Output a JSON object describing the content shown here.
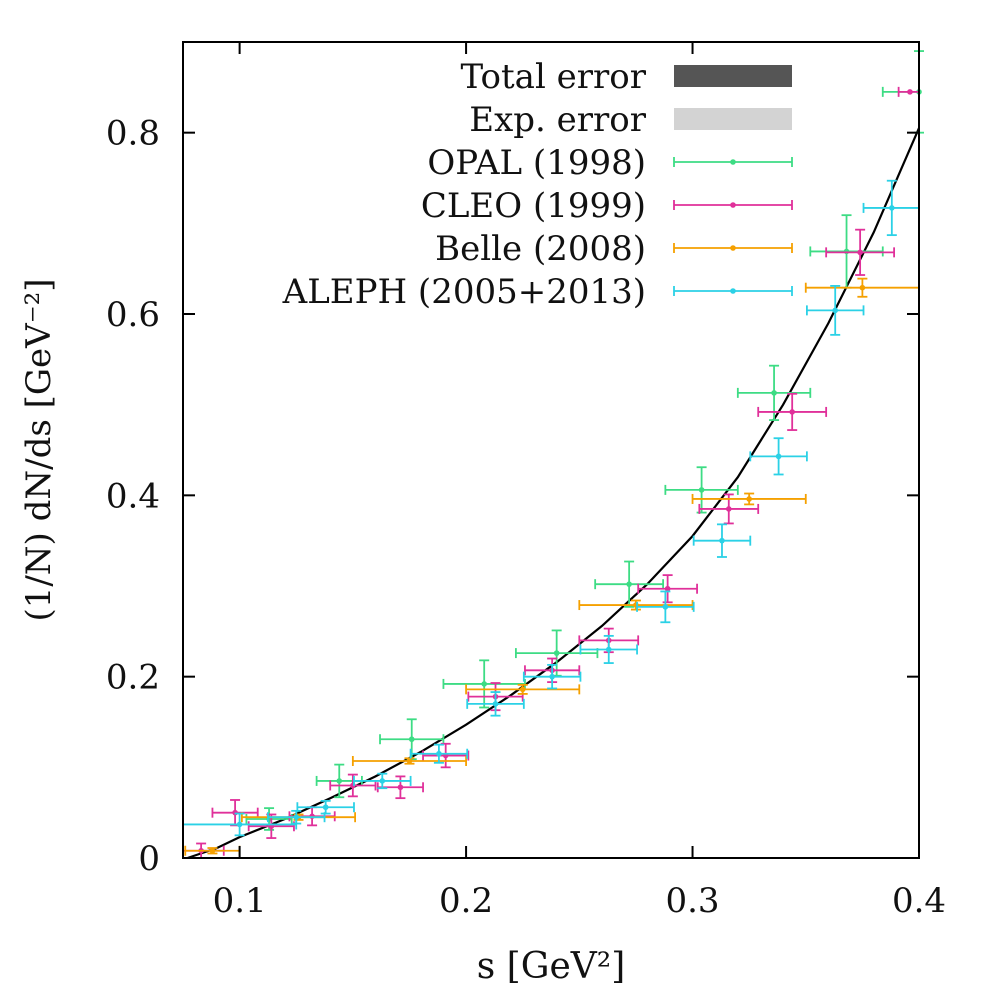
{
  "chart_data": {
    "type": "scatter",
    "title": "",
    "xlabel": "s [GeV²]",
    "ylabel": "(1/N) dN/ds [GeV⁻²]",
    "xlim": [
      0.075,
      0.4
    ],
    "ylim": [
      0,
      0.9
    ],
    "xticks": [
      0.1,
      0.2,
      0.3,
      0.4
    ],
    "yticks": [
      0,
      0.2,
      0.4,
      0.6,
      0.8
    ],
    "xtick_labels": [
      "0.1",
      "0.2",
      "0.3",
      "0.4"
    ],
    "ytick_labels": [
      "0",
      "0.2",
      "0.4",
      "0.6",
      "0.8"
    ],
    "grid": false,
    "legend_position": "top-left",
    "band_legend": [
      {
        "name": "Total error",
        "color": "#555555"
      },
      {
        "name": "Exp. error",
        "color": "#d3d3d3"
      }
    ],
    "curve": {
      "color": "#000000",
      "points": [
        [
          0.077,
          0.0
        ],
        [
          0.09,
          0.011
        ],
        [
          0.1,
          0.023
        ],
        [
          0.12,
          0.043
        ],
        [
          0.14,
          0.066
        ],
        [
          0.16,
          0.09
        ],
        [
          0.18,
          0.117
        ],
        [
          0.2,
          0.147
        ],
        [
          0.22,
          0.18
        ],
        [
          0.24,
          0.216
        ],
        [
          0.26,
          0.256
        ],
        [
          0.28,
          0.302
        ],
        [
          0.3,
          0.355
        ],
        [
          0.32,
          0.42
        ],
        [
          0.34,
          0.5
        ],
        [
          0.36,
          0.59
        ],
        [
          0.38,
          0.69
        ],
        [
          0.4,
          0.805
        ]
      ]
    },
    "series": [
      {
        "name": "OPAL (1998)",
        "color": "#3ddc84",
        "points": [
          {
            "x": 0.113,
            "y": 0.043,
            "xerr": 0.01,
            "yerr": 0.012
          },
          {
            "x": 0.144,
            "y": 0.085,
            "xerr": 0.01,
            "yerr": 0.018
          },
          {
            "x": 0.176,
            "y": 0.131,
            "xerr": 0.014,
            "yerr": 0.022
          },
          {
            "x": 0.208,
            "y": 0.192,
            "xerr": 0.018,
            "yerr": 0.026
          },
          {
            "x": 0.24,
            "y": 0.226,
            "xerr": 0.018,
            "yerr": 0.025
          },
          {
            "x": 0.272,
            "y": 0.302,
            "xerr": 0.015,
            "yerr": 0.025
          },
          {
            "x": 0.304,
            "y": 0.406,
            "xerr": 0.016,
            "yerr": 0.025
          },
          {
            "x": 0.336,
            "y": 0.513,
            "xerr": 0.016,
            "yerr": 0.03
          },
          {
            "x": 0.368,
            "y": 0.669,
            "xerr": 0.016,
            "yerr": 0.04
          },
          {
            "x": 0.4,
            "y": 0.845,
            "xerr": 0.016,
            "yerr": 0.045
          }
        ]
      },
      {
        "name": "CLEO (1999)",
        "color": "#e0309a",
        "points": [
          {
            "x": 0.083,
            "y": 0.008,
            "xerr": 0.01,
            "yerr": 0.008
          },
          {
            "x": 0.098,
            "y": 0.05,
            "xerr": 0.01,
            "yerr": 0.014
          },
          {
            "x": 0.114,
            "y": 0.035,
            "xerr": 0.01,
            "yerr": 0.013
          },
          {
            "x": 0.132,
            "y": 0.046,
            "xerr": 0.01,
            "yerr": 0.01
          },
          {
            "x": 0.15,
            "y": 0.08,
            "xerr": 0.01,
            "yerr": 0.012
          },
          {
            "x": 0.171,
            "y": 0.078,
            "xerr": 0.01,
            "yerr": 0.012
          },
          {
            "x": 0.191,
            "y": 0.113,
            "xerr": 0.01,
            "yerr": 0.013
          },
          {
            "x": 0.213,
            "y": 0.178,
            "xerr": 0.012,
            "yerr": 0.015
          },
          {
            "x": 0.238,
            "y": 0.207,
            "xerr": 0.012,
            "yerr": 0.013
          },
          {
            "x": 0.263,
            "y": 0.24,
            "xerr": 0.013,
            "yerr": 0.013
          },
          {
            "x": 0.289,
            "y": 0.297,
            "xerr": 0.013,
            "yerr": 0.015
          },
          {
            "x": 0.316,
            "y": 0.385,
            "xerr": 0.013,
            "yerr": 0.016
          },
          {
            "x": 0.344,
            "y": 0.492,
            "xerr": 0.015,
            "yerr": 0.02
          },
          {
            "x": 0.374,
            "y": 0.668,
            "xerr": 0.015,
            "yerr": 0.025
          },
          {
            "x": 0.396,
            "y": 0.845,
            "xerr": 0.005,
            "yerr": 0.0
          }
        ]
      },
      {
        "name": "Belle (2008)",
        "color": "#f5a000",
        "points": [
          {
            "x": 0.088,
            "y": 0.008,
            "xerr": 0.012,
            "yerr": 0.003
          },
          {
            "x": 0.126,
            "y": 0.045,
            "xerr": 0.025,
            "yerr": 0.003
          },
          {
            "x": 0.175,
            "y": 0.107,
            "xerr": 0.025,
            "yerr": 0.003
          },
          {
            "x": 0.225,
            "y": 0.186,
            "xerr": 0.025,
            "yerr": 0.005
          },
          {
            "x": 0.275,
            "y": 0.279,
            "xerr": 0.025,
            "yerr": 0.005
          },
          {
            "x": 0.325,
            "y": 0.396,
            "xerr": 0.025,
            "yerr": 0.006
          },
          {
            "x": 0.375,
            "y": 0.629,
            "xerr": 0.025,
            "yerr": 0.01
          }
        ]
      },
      {
        "name": "ALEPH (2005+2013)",
        "color": "#2bd1e6",
        "points": [
          {
            "x": 0.1,
            "y": 0.037,
            "xerr": 0.025,
            "yerr": 0.012
          },
          {
            "x": 0.125,
            "y": 0.045,
            "xerr": 0.0125,
            "yerr": 0.007
          },
          {
            "x": 0.138,
            "y": 0.056,
            "xerr": 0.0125,
            "yerr": 0.007
          },
          {
            "x": 0.163,
            "y": 0.085,
            "xerr": 0.0125,
            "yerr": 0.008
          },
          {
            "x": 0.188,
            "y": 0.115,
            "xerr": 0.0125,
            "yerr": 0.01
          },
          {
            "x": 0.213,
            "y": 0.17,
            "xerr": 0.0125,
            "yerr": 0.013
          },
          {
            "x": 0.238,
            "y": 0.2,
            "xerr": 0.0125,
            "yerr": 0.013
          },
          {
            "x": 0.263,
            "y": 0.23,
            "xerr": 0.0125,
            "yerr": 0.015
          },
          {
            "x": 0.288,
            "y": 0.277,
            "xerr": 0.0125,
            "yerr": 0.017
          },
          {
            "x": 0.313,
            "y": 0.35,
            "xerr": 0.0125,
            "yerr": 0.018
          },
          {
            "x": 0.338,
            "y": 0.443,
            "xerr": 0.0125,
            "yerr": 0.02
          },
          {
            "x": 0.363,
            "y": 0.604,
            "xerr": 0.0125,
            "yerr": 0.027
          },
          {
            "x": 0.388,
            "y": 0.717,
            "xerr": 0.0125,
            "yerr": 0.03
          }
        ]
      }
    ]
  }
}
